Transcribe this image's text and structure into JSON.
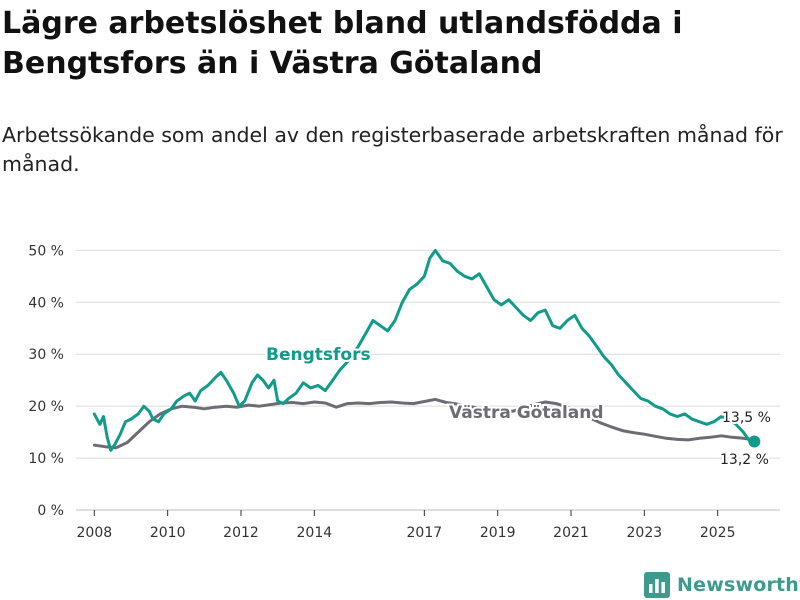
{
  "header": {
    "title": "Lägre arbetslöshet bland utlandsfödda i Bengtsfors än i Västra Götaland",
    "subtitle": "Arbetssökande som andel av den registerbaserade arbetskraften månad för månad."
  },
  "brand": {
    "name": "Newsworthy",
    "icon": "bar-chart-icon"
  },
  "colors": {
    "bengtsfors": "#119b8a",
    "vastra": "#6d6b73",
    "grid": "#dcdcdc",
    "axis": "#333333"
  },
  "chart_data": {
    "type": "line",
    "title": "Lägre arbetslöshet bland utlandsfödda i Bengtsfors än i Västra Götaland",
    "ylabel": "",
    "xlabel": "",
    "ylim": [
      0,
      52
    ],
    "xlim": [
      2007.5,
      2026.7
    ],
    "y_ticks": [
      0,
      10,
      20,
      30,
      40,
      50
    ],
    "y_tick_labels": [
      "0 %",
      "10 %",
      "20 %",
      "30 %",
      "40 %",
      "50 %"
    ],
    "x_ticks": [
      2008,
      2010,
      2012,
      2014,
      2017,
      2019,
      2021,
      2023,
      2025
    ],
    "x_tick_labels": [
      "2008",
      "2010",
      "2012",
      "2014",
      "2017",
      "2019",
      "2021",
      "2023",
      "2025"
    ],
    "series": [
      {
        "name": "Bengtsfors",
        "label": "Bengtsfors",
        "end_label": "13,2 %",
        "end_value": 13.2,
        "points": [
          [
            2008.0,
            18.5
          ],
          [
            2008.15,
            16.5
          ],
          [
            2008.25,
            18.0
          ],
          [
            2008.35,
            14.0
          ],
          [
            2008.45,
            11.5
          ],
          [
            2008.55,
            12.5
          ],
          [
            2008.7,
            14.5
          ],
          [
            2008.85,
            17.0
          ],
          [
            2009.0,
            17.5
          ],
          [
            2009.2,
            18.5
          ],
          [
            2009.35,
            20.0
          ],
          [
            2009.5,
            19.0
          ],
          [
            2009.6,
            17.5
          ],
          [
            2009.75,
            17.0
          ],
          [
            2009.9,
            18.5
          ],
          [
            2010.1,
            19.5
          ],
          [
            2010.25,
            21.0
          ],
          [
            2010.45,
            22.0
          ],
          [
            2010.6,
            22.5
          ],
          [
            2010.75,
            21.0
          ],
          [
            2010.9,
            23.0
          ],
          [
            2011.1,
            24.0
          ],
          [
            2011.3,
            25.5
          ],
          [
            2011.45,
            26.5
          ],
          [
            2011.6,
            25.0
          ],
          [
            2011.8,
            22.5
          ],
          [
            2011.95,
            20.0
          ],
          [
            2012.1,
            21.0
          ],
          [
            2012.3,
            24.5
          ],
          [
            2012.45,
            26.0
          ],
          [
            2012.6,
            25.0
          ],
          [
            2012.75,
            23.5
          ],
          [
            2012.9,
            25.0
          ],
          [
            2013.0,
            21.0
          ],
          [
            2013.15,
            20.5
          ],
          [
            2013.3,
            21.5
          ],
          [
            2013.5,
            22.5
          ],
          [
            2013.7,
            24.5
          ],
          [
            2013.9,
            23.5
          ],
          [
            2014.1,
            24.0
          ],
          [
            2014.3,
            23.0
          ],
          [
            2014.5,
            25.0
          ],
          [
            2014.7,
            27.0
          ],
          [
            2014.9,
            28.5
          ],
          [
            2015.2,
            31.5
          ],
          [
            2015.4,
            34.0
          ],
          [
            2015.6,
            36.5
          ],
          [
            2015.8,
            35.5
          ],
          [
            2016.0,
            34.5
          ],
          [
            2016.2,
            36.5
          ],
          [
            2016.4,
            40.0
          ],
          [
            2016.6,
            42.5
          ],
          [
            2016.8,
            43.5
          ],
          [
            2017.0,
            45.0
          ],
          [
            2017.15,
            48.5
          ],
          [
            2017.3,
            50.0
          ],
          [
            2017.5,
            48.0
          ],
          [
            2017.7,
            47.5
          ],
          [
            2017.9,
            46.0
          ],
          [
            2018.1,
            45.0
          ],
          [
            2018.3,
            44.5
          ],
          [
            2018.5,
            45.5
          ],
          [
            2018.7,
            43.0
          ],
          [
            2018.9,
            40.5
          ],
          [
            2019.1,
            39.5
          ],
          [
            2019.3,
            40.5
          ],
          [
            2019.5,
            39.0
          ],
          [
            2019.7,
            37.5
          ],
          [
            2019.9,
            36.5
          ],
          [
            2020.1,
            38.0
          ],
          [
            2020.3,
            38.5
          ],
          [
            2020.5,
            35.5
          ],
          [
            2020.7,
            35.0
          ],
          [
            2020.9,
            36.5
          ],
          [
            2021.1,
            37.5
          ],
          [
            2021.3,
            35.0
          ],
          [
            2021.5,
            33.5
          ],
          [
            2021.7,
            31.5
          ],
          [
            2021.9,
            29.5
          ],
          [
            2022.1,
            28.0
          ],
          [
            2022.3,
            26.0
          ],
          [
            2022.5,
            24.5
          ],
          [
            2022.7,
            23.0
          ],
          [
            2022.9,
            21.5
          ],
          [
            2023.1,
            21.0
          ],
          [
            2023.3,
            20.0
          ],
          [
            2023.5,
            19.5
          ],
          [
            2023.7,
            18.5
          ],
          [
            2023.9,
            18.0
          ],
          [
            2024.1,
            18.5
          ],
          [
            2024.3,
            17.5
          ],
          [
            2024.5,
            17.0
          ],
          [
            2024.7,
            16.5
          ],
          [
            2024.9,
            17.0
          ],
          [
            2025.1,
            18.0
          ],
          [
            2025.3,
            17.5
          ],
          [
            2025.5,
            16.5
          ],
          [
            2025.7,
            15.0
          ],
          [
            2025.85,
            13.5
          ],
          [
            2026.0,
            13.2
          ]
        ]
      },
      {
        "name": "Västra Götaland",
        "label": "Västra Götaland",
        "end_label": "13,5 %",
        "end_value": 13.5,
        "points": [
          [
            2008.0,
            12.5
          ],
          [
            2008.3,
            12.2
          ],
          [
            2008.6,
            12.0
          ],
          [
            2008.9,
            13.0
          ],
          [
            2009.2,
            15.0
          ],
          [
            2009.5,
            17.0
          ],
          [
            2009.8,
            18.5
          ],
          [
            2010.1,
            19.5
          ],
          [
            2010.4,
            20.0
          ],
          [
            2010.7,
            19.8
          ],
          [
            2011.0,
            19.5
          ],
          [
            2011.3,
            19.8
          ],
          [
            2011.6,
            20.0
          ],
          [
            2011.9,
            19.8
          ],
          [
            2012.2,
            20.2
          ],
          [
            2012.5,
            20.0
          ],
          [
            2012.8,
            20.3
          ],
          [
            2013.1,
            20.6
          ],
          [
            2013.4,
            20.7
          ],
          [
            2013.7,
            20.5
          ],
          [
            2014.0,
            20.8
          ],
          [
            2014.3,
            20.6
          ],
          [
            2014.6,
            19.8
          ],
          [
            2014.9,
            20.5
          ],
          [
            2015.2,
            20.6
          ],
          [
            2015.5,
            20.5
          ],
          [
            2015.8,
            20.7
          ],
          [
            2016.1,
            20.8
          ],
          [
            2016.4,
            20.6
          ],
          [
            2016.7,
            20.5
          ],
          [
            2017.0,
            20.9
          ],
          [
            2017.3,
            21.3
          ],
          [
            2017.6,
            20.7
          ],
          [
            2017.9,
            20.4
          ],
          [
            2018.2,
            20.0
          ],
          [
            2018.5,
            19.6
          ],
          [
            2018.8,
            19.3
          ],
          [
            2019.1,
            19.2
          ],
          [
            2019.4,
            19.0
          ],
          [
            2019.7,
            19.6
          ],
          [
            2020.0,
            20.3
          ],
          [
            2020.3,
            20.8
          ],
          [
            2020.6,
            20.5
          ],
          [
            2020.9,
            19.8
          ],
          [
            2021.2,
            18.8
          ],
          [
            2021.5,
            17.8
          ],
          [
            2021.8,
            16.8
          ],
          [
            2022.1,
            16.0
          ],
          [
            2022.4,
            15.3
          ],
          [
            2022.7,
            14.9
          ],
          [
            2023.0,
            14.6
          ],
          [
            2023.3,
            14.2
          ],
          [
            2023.6,
            13.8
          ],
          [
            2023.9,
            13.6
          ],
          [
            2024.2,
            13.5
          ],
          [
            2024.5,
            13.8
          ],
          [
            2024.8,
            14.0
          ],
          [
            2025.1,
            14.3
          ],
          [
            2025.4,
            14.0
          ],
          [
            2025.7,
            13.8
          ],
          [
            2026.0,
            13.5
          ]
        ]
      }
    ]
  }
}
